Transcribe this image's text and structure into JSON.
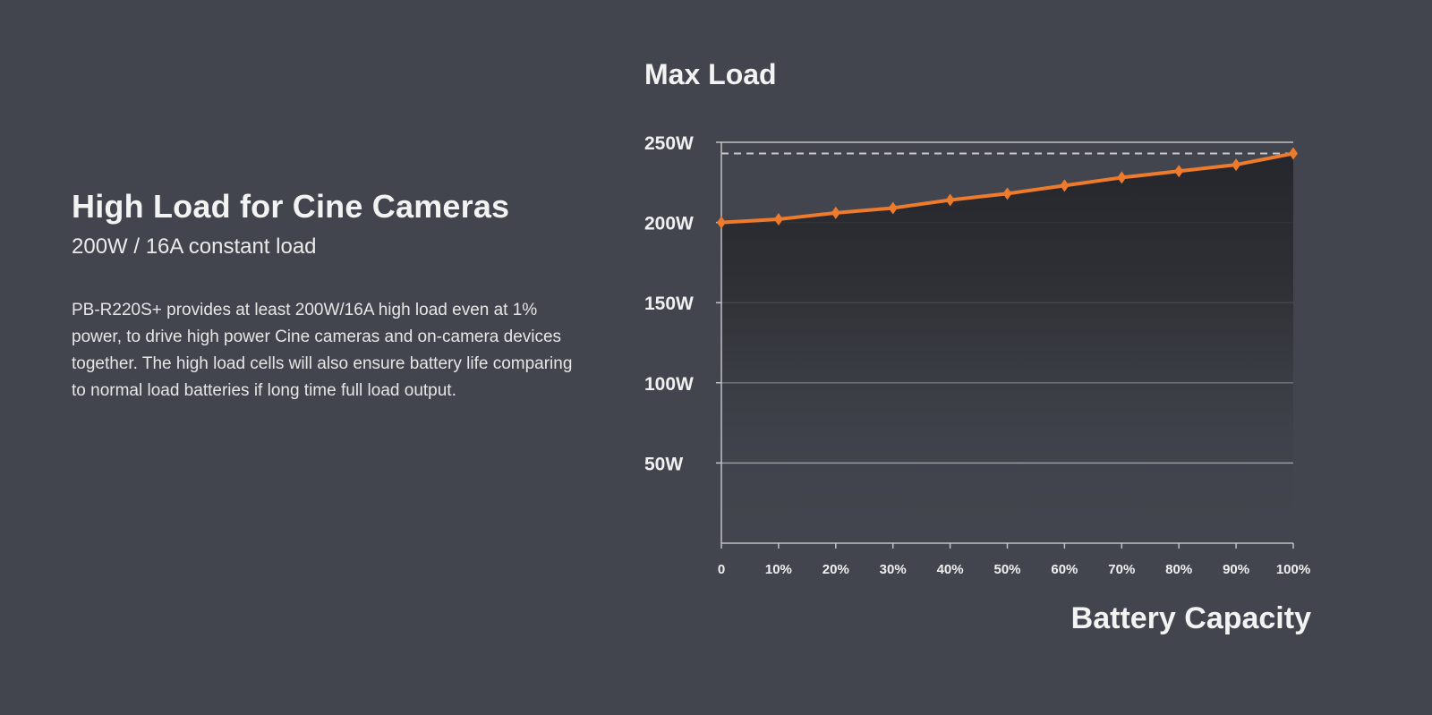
{
  "section": {
    "title": "High Load for Cine Cameras",
    "subtitle": "200W / 16A constant load",
    "description": "PB-R220S+ provides at least 200W/16A high load even at 1% power, to drive high power Cine cameras and on-camera devices together. The high load cells will also ensure battery life comparing to normal load batteries if long time full load output."
  },
  "colors": {
    "background": "#42454d",
    "line": "#ee7a2c",
    "fill": "#25262b",
    "grid": "#bfc1c4"
  },
  "chart_data": {
    "type": "area",
    "title": "Max Load",
    "xlabel": "Battery Capacity",
    "ylabel": "",
    "categories": [
      "0",
      "10%",
      "20%",
      "30%",
      "40%",
      "50%",
      "60%",
      "70%",
      "80%",
      "90%",
      "100%"
    ],
    "x": [
      0,
      10,
      20,
      30,
      40,
      50,
      60,
      70,
      80,
      90,
      100
    ],
    "series": [
      {
        "name": "Max Load (W)",
        "values": [
          200,
          202,
          206,
          209,
          214,
          218,
          223,
          228,
          232,
          236,
          243
        ]
      }
    ],
    "yticks": [
      {
        "value": 50,
        "label": "50W"
      },
      {
        "value": 100,
        "label": "100W"
      },
      {
        "value": 150,
        "label": "150W"
      },
      {
        "value": 200,
        "label": "200W"
      },
      {
        "value": 250,
        "label": "250W"
      }
    ],
    "reference_line": {
      "value": 243,
      "style": "dashed"
    },
    "xlim": [
      0,
      100
    ],
    "ylim": [
      0,
      250
    ],
    "grid": true
  }
}
